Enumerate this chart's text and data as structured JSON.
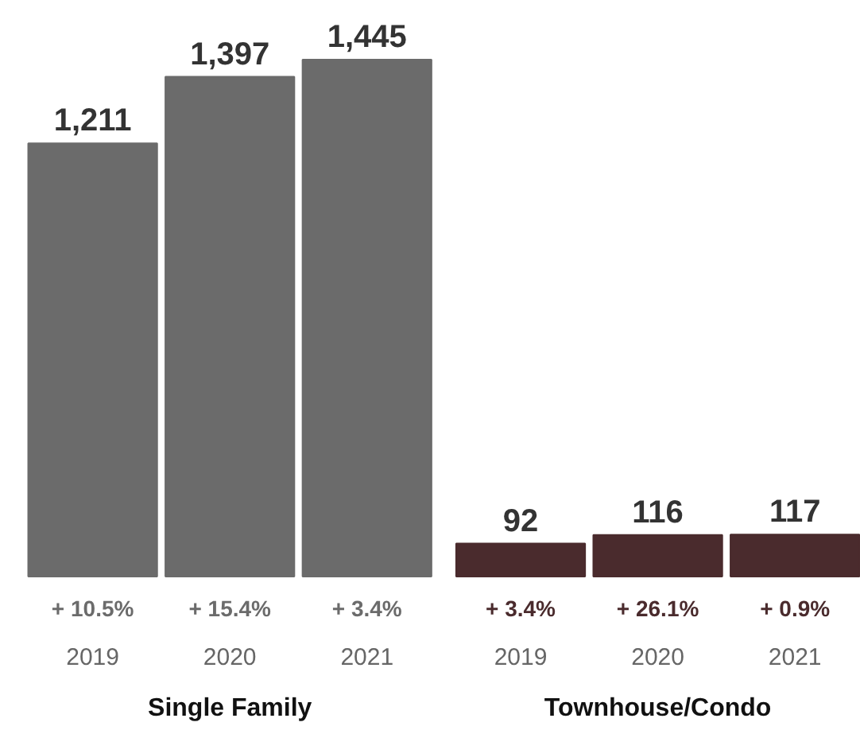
{
  "chart_data": {
    "type": "bar",
    "categories": [
      "2019",
      "2020",
      "2021",
      "2019",
      "2020",
      "2021"
    ],
    "values": [
      1211,
      1397,
      1445,
      92,
      116,
      117
    ],
    "colors": [
      "#6b6b6b",
      "#6b6b6b",
      "#6b6b6b",
      "#4a2b2d",
      "#4a2b2d",
      "#4a2b2d"
    ],
    "value_labels": [
      "1,211",
      "1,397",
      "1,445",
      "92",
      "116",
      "117"
    ],
    "annotations": [
      "+ 10.5%",
      "+ 15.4%",
      "+ 3.4%",
      "+ 3.4%",
      "+ 26.1%",
      "+ 0.9%",
      "Single Family",
      "Townhouse/Condo"
    ]
  }
}
